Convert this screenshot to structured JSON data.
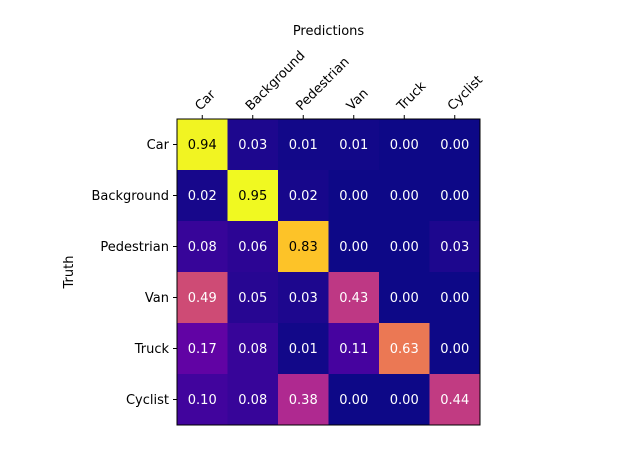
{
  "chart_data": {
    "type": "heatmap",
    "title": "",
    "xlabel": "Predictions",
    "ylabel": "Truth",
    "x_categories": [
      "Car",
      "Background",
      "Pedestrian",
      "Van",
      "Truck",
      "Cyclist"
    ],
    "y_categories": [
      "Car",
      "Background",
      "Pedestrian",
      "Van",
      "Truck",
      "Cyclist"
    ],
    "values": [
      [
        0.94,
        0.03,
        0.01,
        0.01,
        0.0,
        0.0
      ],
      [
        0.02,
        0.95,
        0.02,
        0.0,
        0.0,
        0.0
      ],
      [
        0.08,
        0.06,
        0.83,
        0.0,
        0.0,
        0.03
      ],
      [
        0.49,
        0.05,
        0.03,
        0.43,
        0.0,
        0.0
      ],
      [
        0.17,
        0.08,
        0.01,
        0.11,
        0.63,
        0.0
      ],
      [
        0.1,
        0.08,
        0.38,
        0.0,
        0.0,
        0.44
      ]
    ],
    "value_labels": [
      [
        "0.94",
        "0.03",
        "0.01",
        "0.01",
        "0.00",
        "0.00"
      ],
      [
        "0.02",
        "0.95",
        "0.02",
        "0.00",
        "0.00",
        "0.00"
      ],
      [
        "0.08",
        "0.06",
        "0.83",
        "0.00",
        "0.00",
        "0.03"
      ],
      [
        "0.49",
        "0.05",
        "0.03",
        "0.43",
        "0.00",
        "0.00"
      ],
      [
        "0.17",
        "0.08",
        "0.01",
        "0.11",
        "0.63",
        "0.00"
      ],
      [
        "0.10",
        "0.08",
        "0.38",
        "0.00",
        "0.00",
        "0.44"
      ]
    ],
    "colormap": "plasma",
    "x_tick_position": "top",
    "x_tick_rotation_deg": 45,
    "grid": false,
    "legend": "none"
  }
}
